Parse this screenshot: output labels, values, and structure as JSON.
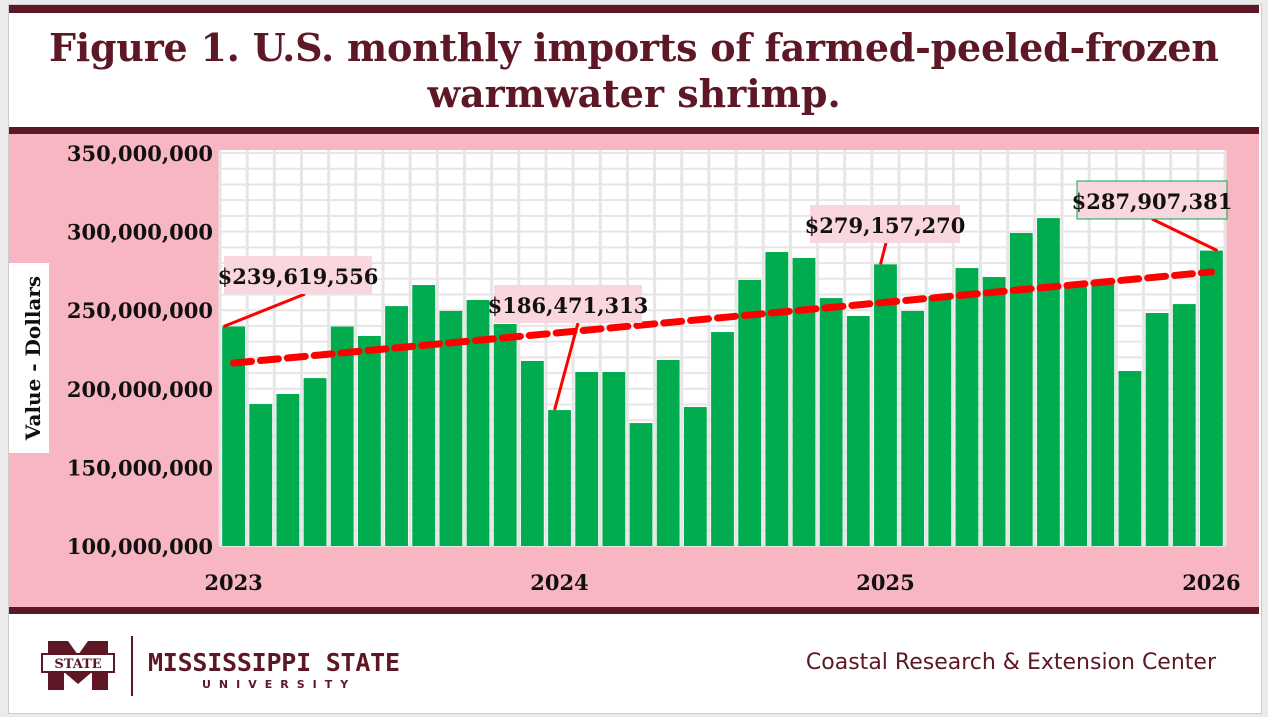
{
  "chart_data": {
    "type": "bar",
    "title": "Figure 1. U.S. monthly imports of farmed-peeled-frozen warmwater shrimp.",
    "title_lines": [
      "Figure 1. U.S. monthly imports of farmed-peeled-frozen",
      "warmwater shrimp."
    ],
    "xlabel": "",
    "ylabel": "Value - Dollars",
    "ylim": [
      100000000,
      350000000
    ],
    "yticks": [
      100000000,
      150000000,
      200000000,
      250000000,
      300000000,
      350000000
    ],
    "ytick_labels": [
      "100,000,000",
      "150,000,000",
      "200,000,000",
      "250,000,000",
      "300,000,000",
      "350,000,000"
    ],
    "xtick_labels": [
      {
        "label": "2023",
        "index": 0
      },
      {
        "label": "2024",
        "index": 12
      },
      {
        "label": "2025",
        "index": 24
      },
      {
        "label": "2026",
        "index": 36
      }
    ],
    "grid": true,
    "series": [
      {
        "name": "Monthly imports",
        "color": "#00ac4e",
        "values": [
          239619556,
          190300000,
          196700000,
          206800000,
          239600000,
          233600000,
          252600000,
          266000000,
          249500000,
          256500000,
          241200000,
          217700000,
          186471313,
          210700000,
          210700000,
          178200000,
          218300000,
          188400000,
          236100000,
          269200000,
          287000000,
          283200000,
          257700000,
          246300000,
          279157270,
          249500000,
          259000000,
          276800000,
          271100000,
          299100000,
          308600000,
          264700000,
          266600000,
          211300000,
          248200000,
          253900000,
          287907381
        ]
      }
    ],
    "trendline": {
      "type": "linear",
      "color": "#ff0000",
      "start": 216400000,
      "end": 274300000
    },
    "annotations": [
      {
        "index": 0,
        "text": "$239,619,556"
      },
      {
        "index": 12,
        "text": "$186,471,313"
      },
      {
        "index": 24,
        "text": "$279,157,270"
      },
      {
        "index": 36,
        "text": "$287,907,381"
      }
    ]
  },
  "footer": {
    "logo_text": "MISSISSIPPI STATE",
    "logo_subtext": "UNIVERSITY",
    "logo_badge": "STATE",
    "center_name": "Coastal Research & Extension Center"
  },
  "colors": {
    "maroon": "#5d1725",
    "pink": "#f7b6c2",
    "label_bg": "#fad7de"
  }
}
